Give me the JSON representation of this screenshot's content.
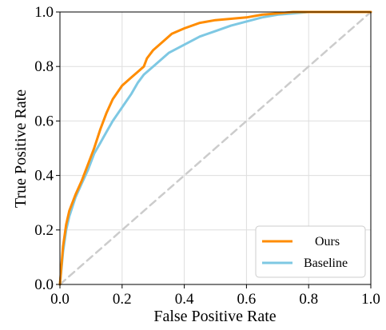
{
  "chart_data": {
    "type": "line",
    "title": "",
    "xlabel": "False Positive Rate",
    "ylabel": "True Positive Rate",
    "xlim": [
      0.0,
      1.0
    ],
    "ylim": [
      0.0,
      1.0
    ],
    "xticks": [
      "0.0",
      "0.2",
      "0.4",
      "0.6",
      "0.8",
      "1.0"
    ],
    "yticks": [
      "0.0",
      "0.2",
      "0.4",
      "0.6",
      "0.8",
      "1.0"
    ],
    "grid": true,
    "legend_position": "bottom-right",
    "series": [
      {
        "name": "Ours",
        "color": "#ff8c00",
        "style": "solid",
        "x": [
          0.0,
          0.01,
          0.02,
          0.03,
          0.05,
          0.07,
          0.09,
          0.11,
          0.13,
          0.15,
          0.17,
          0.2,
          0.23,
          0.25,
          0.27,
          0.28,
          0.3,
          0.33,
          0.36,
          0.4,
          0.45,
          0.5,
          0.55,
          0.6,
          0.65,
          0.7,
          0.75,
          0.8,
          0.9,
          1.0
        ],
        "y": [
          0.0,
          0.14,
          0.22,
          0.27,
          0.33,
          0.38,
          0.44,
          0.5,
          0.57,
          0.63,
          0.68,
          0.73,
          0.76,
          0.78,
          0.8,
          0.83,
          0.86,
          0.89,
          0.92,
          0.94,
          0.96,
          0.97,
          0.975,
          0.98,
          0.99,
          0.995,
          1.0,
          1.0,
          1.0,
          1.0
        ]
      },
      {
        "name": "Baseline",
        "color": "#7ec8e3",
        "style": "solid",
        "x": [
          0.0,
          0.01,
          0.02,
          0.03,
          0.05,
          0.07,
          0.09,
          0.11,
          0.13,
          0.15,
          0.17,
          0.2,
          0.23,
          0.25,
          0.27,
          0.3,
          0.35,
          0.4,
          0.45,
          0.5,
          0.55,
          0.6,
          0.65,
          0.7,
          0.75,
          0.8,
          0.9,
          1.0
        ],
        "y": [
          0.0,
          0.12,
          0.2,
          0.25,
          0.32,
          0.37,
          0.42,
          0.48,
          0.52,
          0.56,
          0.6,
          0.65,
          0.7,
          0.74,
          0.77,
          0.8,
          0.85,
          0.88,
          0.91,
          0.93,
          0.95,
          0.965,
          0.98,
          0.99,
          0.995,
          1.0,
          1.0,
          1.0
        ]
      },
      {
        "color": "#cccccc",
        "style": "dashed",
        "x": [
          0.0,
          1.0
        ],
        "y": [
          0.0,
          1.0
        ]
      }
    ]
  }
}
